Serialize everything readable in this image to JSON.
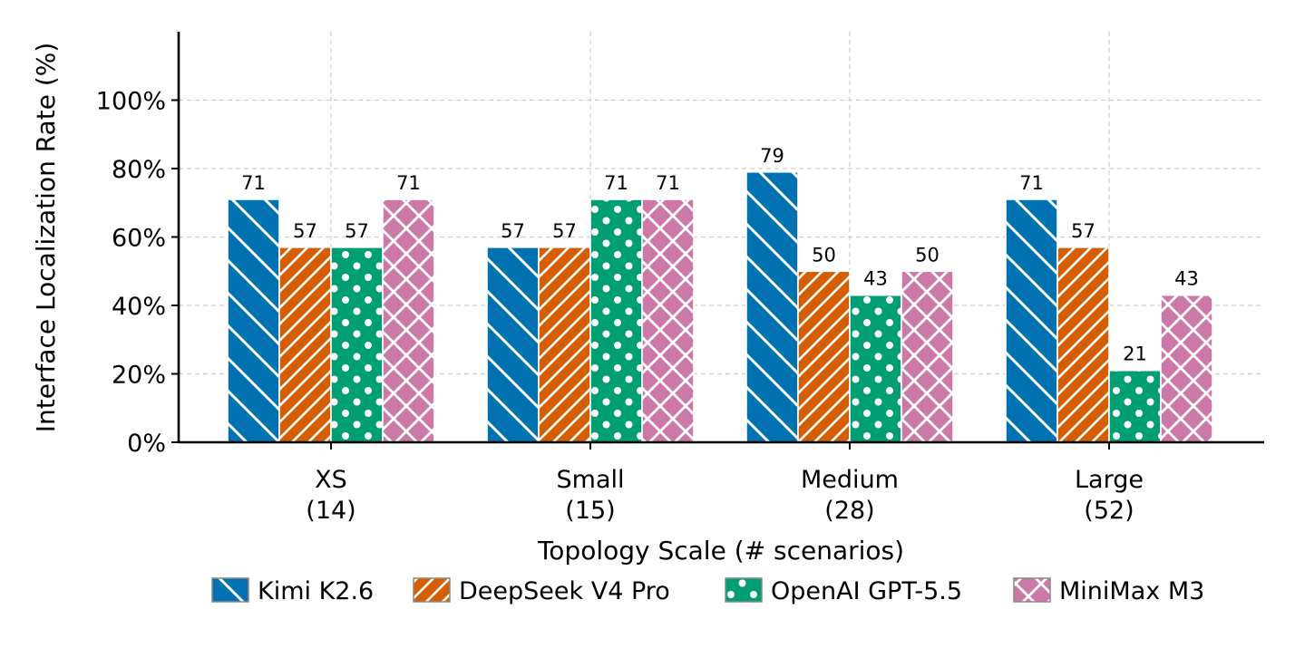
{
  "chart_data": {
    "type": "bar",
    "categories": [
      "XS\n(14)",
      "Small\n(15)",
      "Medium\n(28)",
      "Large\n(52)"
    ],
    "series": [
      {
        "name": "Kimi K2.6",
        "values": [
          71,
          57,
          79,
          71
        ],
        "color": "#0072b2",
        "pattern": "backslash"
      },
      {
        "name": "DeepSeek V4 Pro",
        "values": [
          57,
          57,
          50,
          57
        ],
        "color": "#d55e00",
        "pattern": "slash"
      },
      {
        "name": "OpenAI GPT-5.5",
        "values": [
          57,
          71,
          43,
          21
        ],
        "color": "#009e73",
        "pattern": "dots"
      },
      {
        "name": "MiniMax M3",
        "values": [
          71,
          71,
          50,
          43
        ],
        "color": "#cc79a7",
        "pattern": "cross"
      }
    ],
    "xlabel": "Topology Scale (# scenarios)",
    "ylabel": "Interface Localization Rate (%)",
    "ylim": [
      0,
      120
    ],
    "yticks": [
      0,
      20,
      40,
      60,
      80,
      100
    ],
    "ytick_labels": [
      "0%",
      "20%",
      "40%",
      "60%",
      "80%",
      "100%"
    ],
    "grid": true,
    "legend_position": "bottom"
  }
}
